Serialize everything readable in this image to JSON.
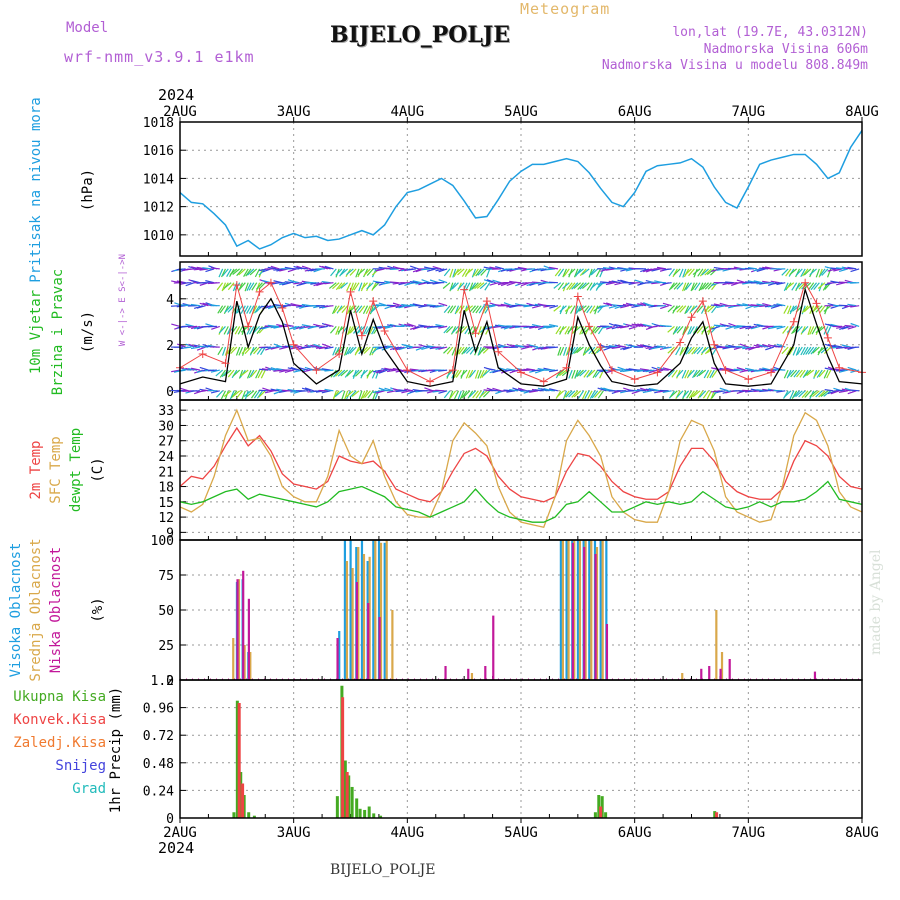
{
  "header": {
    "model_label": "Model",
    "model_run": "wrf-nmm_v3.9.1 e1km",
    "meteogram_label": "Meteogram",
    "station": "BIJELO_POLJE",
    "coords": "lon,lat (19.7E, 43.0312N)",
    "altitude": "Nadmorska Visina 606m",
    "model_altitude": "Nadmorska Visina u modelu 808.849m"
  },
  "footer": {
    "station": "BIJELO_POLJE"
  },
  "credit": "made by Angel",
  "time_axis": {
    "year": "2024",
    "start_day": 2,
    "end_day": 8,
    "ticks": [
      "2AUG",
      "3AUG",
      "4AUG",
      "5AUG",
      "6AUG",
      "7AUG",
      "8AUG"
    ]
  },
  "colors": {
    "pressure": "#1e9ee0",
    "temp2m": "#ee4444",
    "sfc": "#d9a84a",
    "dewpt": "#22bb22",
    "high_cloud": "#1e9ee0",
    "mid_cloud": "#d9a84a",
    "low_cloud": "#c2189a",
    "total_precip": "#44aa22",
    "conv_precip": "#ee4444",
    "frozen": "#f07a30",
    "snow": "#4444dd",
    "hail": "#22bbbb",
    "wind_speed": "#000000",
    "gust": "#ee4444"
  },
  "chart_data": [
    {
      "type": "line",
      "panel": "pressure",
      "ylabel_main": "Pritisak na nivou mora",
      "ylabel_unit": "(hPa)",
      "ylim": [
        1008.5,
        1018
      ],
      "yticks": [
        1010,
        1012,
        1014,
        1016,
        1018
      ],
      "grid": true,
      "series": [
        {
          "x": [
            2.0,
            2.1,
            2.2,
            2.3,
            2.4,
            2.5,
            2.6,
            2.7,
            2.8,
            2.9,
            3.0,
            3.1,
            3.2,
            3.3,
            3.4,
            3.5,
            3.6,
            3.7,
            3.8,
            3.9,
            4.0,
            4.1,
            4.2,
            4.3,
            4.4,
            4.5,
            4.6,
            4.7,
            4.8,
            4.9,
            5.0,
            5.1,
            5.2,
            5.3,
            5.4,
            5.5,
            5.6,
            5.7,
            5.8,
            5.9,
            6.0,
            6.1,
            6.2,
            6.3,
            6.4,
            6.5,
            6.6,
            6.7,
            6.8,
            6.9,
            7.0,
            7.1,
            7.2,
            7.3,
            7.4,
            7.5,
            7.6,
            7.7,
            7.8,
            7.9,
            8.0
          ],
          "y": [
            1013.0,
            1012.3,
            1012.2,
            1011.5,
            1010.7,
            1009.2,
            1009.6,
            1009.0,
            1009.3,
            1009.8,
            1010.1,
            1009.8,
            1009.9,
            1009.6,
            1009.7,
            1010.0,
            1010.3,
            1010.0,
            1010.7,
            1012.0,
            1013.0,
            1013.2,
            1013.6,
            1014.0,
            1013.5,
            1012.4,
            1011.2,
            1011.3,
            1012.5,
            1013.8,
            1014.5,
            1015.0,
            1015.0,
            1015.2,
            1015.4,
            1015.2,
            1014.4,
            1013.3,
            1012.3,
            1012.0,
            1013.0,
            1014.5,
            1014.9,
            1015.0,
            1015.1,
            1015.4,
            1014.8,
            1013.4,
            1012.3,
            1011.9,
            1013.4,
            1015.0,
            1015.3,
            1015.5,
            1015.7,
            1015.7,
            1015.0,
            1014.0,
            1014.4,
            1016.2,
            1017.4
          ]
        }
      ]
    },
    {
      "type": "line",
      "panel": "wind",
      "ylabel_main": "10m Vjetar",
      "ylabel_sub": "Brzina i Pravac",
      "ylabel_unit": "(m/s)",
      "compass": "W <-|-> E  S<-|->N",
      "ylim": [
        -0.4,
        5.6
      ],
      "yticks": [
        0,
        2,
        4
      ],
      "grid": true,
      "series": [
        {
          "name": "speed",
          "x": [
            2.0,
            2.2,
            2.4,
            2.5,
            2.6,
            2.7,
            2.8,
            2.9,
            3.0,
            3.2,
            3.4,
            3.5,
            3.6,
            3.7,
            3.8,
            4.0,
            4.2,
            4.4,
            4.5,
            4.6,
            4.7,
            4.8,
            5.0,
            5.2,
            5.4,
            5.5,
            5.6,
            5.7,
            5.8,
            6.0,
            6.2,
            6.4,
            6.5,
            6.6,
            6.7,
            6.8,
            7.0,
            7.2,
            7.4,
            7.5,
            7.6,
            7.7,
            7.8,
            8.0
          ],
          "y": [
            0.3,
            0.6,
            0.4,
            3.9,
            1.9,
            3.3,
            4.0,
            3.0,
            1.2,
            0.3,
            0.9,
            3.5,
            1.6,
            3.1,
            1.8,
            0.4,
            0.2,
            0.4,
            3.5,
            1.7,
            3.0,
            1.0,
            0.3,
            0.2,
            0.5,
            3.2,
            2.0,
            1.1,
            0.4,
            0.2,
            0.3,
            1.2,
            2.3,
            3.0,
            1.2,
            0.3,
            0.2,
            0.3,
            2.0,
            4.4,
            2.9,
            1.5,
            0.4,
            0.3
          ]
        },
        {
          "name": "gust",
          "x": [
            2.0,
            2.2,
            2.4,
            2.5,
            2.6,
            2.7,
            2.8,
            2.9,
            3.0,
            3.2,
            3.4,
            3.5,
            3.6,
            3.7,
            3.8,
            4.0,
            4.2,
            4.4,
            4.5,
            4.6,
            4.7,
            4.8,
            5.0,
            5.2,
            5.4,
            5.5,
            5.6,
            5.7,
            5.8,
            6.0,
            6.2,
            6.4,
            6.5,
            6.6,
            6.7,
            6.8,
            7.0,
            7.2,
            7.4,
            7.5,
            7.6,
            7.7,
            7.8,
            8.0
          ],
          "y": [
            1.0,
            1.6,
            1.2,
            4.6,
            2.8,
            4.3,
            4.7,
            3.6,
            2.0,
            0.9,
            1.6,
            4.3,
            2.4,
            3.9,
            2.6,
            0.9,
            0.4,
            0.9,
            4.4,
            2.5,
            3.9,
            1.7,
            0.8,
            0.4,
            1.0,
            4.1,
            2.8,
            1.9,
            0.9,
            0.5,
            0.8,
            2.1,
            3.2,
            3.9,
            2.0,
            0.9,
            0.5,
            0.8,
            3.0,
            4.7,
            3.8,
            2.3,
            1.0,
            0.8
          ]
        }
      ]
    },
    {
      "type": "line",
      "panel": "temperature",
      "ylabel_lines": [
        "2m Temp",
        "SFC Temp",
        "dewpt Temp"
      ],
      "ylabel_unit": "(C)",
      "ylim": [
        7.5,
        35
      ],
      "yticks": [
        9,
        12,
        15,
        18,
        21,
        24,
        27,
        30,
        33
      ],
      "grid": true,
      "series": [
        {
          "name": "2m Temp",
          "x": [
            2.0,
            2.1,
            2.2,
            2.3,
            2.4,
            2.5,
            2.6,
            2.7,
            2.8,
            2.9,
            3.0,
            3.1,
            3.2,
            3.3,
            3.4,
            3.5,
            3.6,
            3.7,
            3.8,
            3.9,
            4.0,
            4.1,
            4.2,
            4.3,
            4.4,
            4.5,
            4.6,
            4.7,
            4.8,
            4.9,
            5.0,
            5.1,
            5.2,
            5.3,
            5.4,
            5.5,
            5.6,
            5.7,
            5.8,
            5.9,
            6.0,
            6.1,
            6.2,
            6.3,
            6.4,
            6.5,
            6.6,
            6.7,
            6.8,
            6.9,
            7.0,
            7.1,
            7.2,
            7.3,
            7.4,
            7.5,
            7.6,
            7.7,
            7.8,
            7.9,
            8.0
          ],
          "y": [
            18,
            20,
            19.5,
            22,
            26,
            29.5,
            26,
            28,
            25,
            20.5,
            18.5,
            18,
            17.5,
            19,
            24,
            23,
            22.5,
            23,
            21,
            17.5,
            16.5,
            15.5,
            15,
            17,
            21,
            24.5,
            25.5,
            24,
            20,
            17.5,
            16,
            15.5,
            15,
            16,
            21,
            24.5,
            24,
            22,
            19,
            17,
            16,
            15.5,
            15.5,
            17,
            22,
            25.5,
            25.5,
            23,
            19,
            17,
            16,
            15.5,
            15.5,
            17.5,
            23,
            27,
            26,
            24,
            20,
            18,
            17.5
          ]
        },
        {
          "name": "SFC Temp",
          "x": [
            2.0,
            2.1,
            2.2,
            2.3,
            2.4,
            2.5,
            2.6,
            2.7,
            2.8,
            2.9,
            3.0,
            3.1,
            3.2,
            3.3,
            3.4,
            3.5,
            3.6,
            3.7,
            3.8,
            3.9,
            4.0,
            4.1,
            4.2,
            4.3,
            4.4,
            4.5,
            4.6,
            4.7,
            4.8,
            4.9,
            5.0,
            5.1,
            5.2,
            5.3,
            5.4,
            5.5,
            5.6,
            5.7,
            5.8,
            5.9,
            6.0,
            6.1,
            6.2,
            6.3,
            6.4,
            6.5,
            6.6,
            6.7,
            6.8,
            6.9,
            7.0,
            7.1,
            7.2,
            7.3,
            7.4,
            7.5,
            7.6,
            7.7,
            7.8,
            7.9,
            8.0
          ],
          "y": [
            14,
            13,
            14.5,
            20,
            28,
            33,
            27,
            27.5,
            24,
            18,
            16,
            15,
            15,
            20,
            29,
            24,
            22.5,
            27,
            20,
            15,
            12.5,
            12,
            12,
            17,
            27,
            30.5,
            28.5,
            26,
            18,
            13,
            11,
            10.5,
            10,
            16,
            27,
            31,
            28,
            24,
            16,
            13,
            11.5,
            11,
            11,
            17,
            27,
            31,
            30,
            25,
            16,
            13,
            12,
            11,
            11.5,
            18,
            28,
            32.5,
            31,
            26,
            17,
            14,
            13
          ]
        },
        {
          "name": "dewpt Temp",
          "x": [
            2.0,
            2.1,
            2.2,
            2.3,
            2.4,
            2.5,
            2.6,
            2.7,
            2.8,
            2.9,
            3.0,
            3.1,
            3.2,
            3.3,
            3.4,
            3.5,
            3.6,
            3.7,
            3.8,
            3.9,
            4.0,
            4.1,
            4.2,
            4.3,
            4.4,
            4.5,
            4.6,
            4.7,
            4.8,
            4.9,
            5.0,
            5.1,
            5.2,
            5.3,
            5.4,
            5.5,
            5.6,
            5.7,
            5.8,
            5.9,
            6.0,
            6.1,
            6.2,
            6.3,
            6.4,
            6.5,
            6.6,
            6.7,
            6.8,
            6.9,
            7.0,
            7.1,
            7.2,
            7.3,
            7.4,
            7.5,
            7.6,
            7.7,
            7.8,
            7.9,
            8.0
          ],
          "y": [
            15,
            14.5,
            15,
            16,
            17,
            17.5,
            15.5,
            16.5,
            16,
            15.5,
            15,
            14.5,
            14,
            15,
            17,
            17.5,
            18,
            17,
            16,
            14,
            13.5,
            13,
            12,
            13,
            14,
            15,
            17.5,
            15,
            13,
            12,
            11.5,
            11,
            11,
            12,
            14.5,
            15,
            17,
            15,
            13,
            13,
            14,
            15,
            14.5,
            15,
            14.5,
            15,
            17,
            15.5,
            14,
            13.5,
            14,
            15,
            14,
            15,
            15,
            15.5,
            17,
            19,
            15.5,
            15,
            14.5
          ]
        }
      ]
    },
    {
      "type": "bar",
      "panel": "clouds",
      "ylabel_lines": [
        "Visoka Oblacnost",
        "Srednja Oblacnost",
        "Niska Oblacnost"
      ],
      "ylabel_unit": "(%)",
      "ylim": [
        0,
        100
      ],
      "yticks": [
        0,
        25,
        50,
        75,
        100
      ],
      "grid": true,
      "series": [
        {
          "name": "Visoka Oblacnost",
          "x": [
            2.5,
            2.55,
            2.6,
            3.4,
            3.45,
            3.5,
            3.55,
            3.6,
            3.65,
            3.7,
            3.75,
            3.8,
            5.35,
            5.4,
            5.45,
            5.5,
            5.55,
            5.6,
            5.65,
            5.7,
            5.75
          ],
          "values": [
            70,
            72,
            20,
            35,
            100,
            100,
            95,
            100,
            85,
            100,
            100,
            98,
            100,
            100,
            100,
            100,
            100,
            100,
            100,
            100,
            100
          ]
        },
        {
          "name": "Srednja Oblacnost",
          "x": [
            2.45,
            2.5,
            2.55,
            2.6,
            3.45,
            3.5,
            3.55,
            3.6,
            3.65,
            3.7,
            3.75,
            3.8,
            3.85,
            4.55,
            5.35,
            5.4,
            5.45,
            5.5,
            5.55,
            5.6,
            5.65,
            5.7,
            6.4,
            6.7,
            6.75
          ],
          "values": [
            30,
            72,
            25,
            20,
            85,
            80,
            95,
            90,
            88,
            100,
            98,
            100,
            50,
            5,
            100,
            100,
            100,
            100,
            100,
            100,
            95,
            100,
            5,
            50,
            20
          ]
        },
        {
          "name": "Niska Oblacnost",
          "x": [
            2.47,
            2.52,
            2.57,
            3.35,
            3.52,
            3.62,
            3.72,
            4.3,
            4.5,
            4.65,
            4.72,
            5.42,
            5.52,
            5.62,
            5.72,
            6.55,
            6.62,
            6.72,
            6.8,
            7.55
          ],
          "values": [
            72,
            78,
            58,
            30,
            70,
            55,
            45,
            10,
            8,
            10,
            46,
            98,
            95,
            90,
            40,
            8,
            10,
            8,
            15,
            6
          ]
        }
      ]
    },
    {
      "type": "bar",
      "panel": "precipitation",
      "ylabel_lines": [
        "Ukupna Kisa",
        "Konvek.Kisa",
        "Zaledj.Kisa",
        "Snijeg",
        "Grad"
      ],
      "ylabel_unit": "1hr Precip (mm)",
      "ylim": [
        0,
        1.2
      ],
      "yticks": [
        0,
        0.24,
        0.48,
        0.72,
        0.96,
        1.2
      ],
      "grid": true,
      "series": [
        {
          "name": "Ukupna Kisa",
          "x": [
            2.47,
            2.5,
            2.53,
            2.56,
            2.6,
            2.65,
            3.38,
            3.42,
            3.45,
            3.48,
            3.51,
            3.55,
            3.58,
            3.62,
            3.66,
            3.7,
            3.76,
            5.65,
            5.68,
            5.71,
            5.74,
            6.7
          ],
          "values": [
            0.05,
            1.02,
            0.4,
            0.2,
            0.05,
            0.02,
            0.19,
            1.15,
            0.5,
            0.37,
            0.27,
            0.17,
            0.08,
            0.07,
            0.1,
            0.04,
            0.02,
            0.05,
            0.2,
            0.19,
            0.05,
            0.06
          ]
        },
        {
          "name": "Konvek.Kisa",
          "x": [
            2.49,
            2.52,
            3.4,
            3.44,
            5.67,
            6.69
          ],
          "values": [
            1.0,
            0.3,
            1.05,
            0.4,
            0.1,
            0.05
          ]
        }
      ]
    }
  ]
}
